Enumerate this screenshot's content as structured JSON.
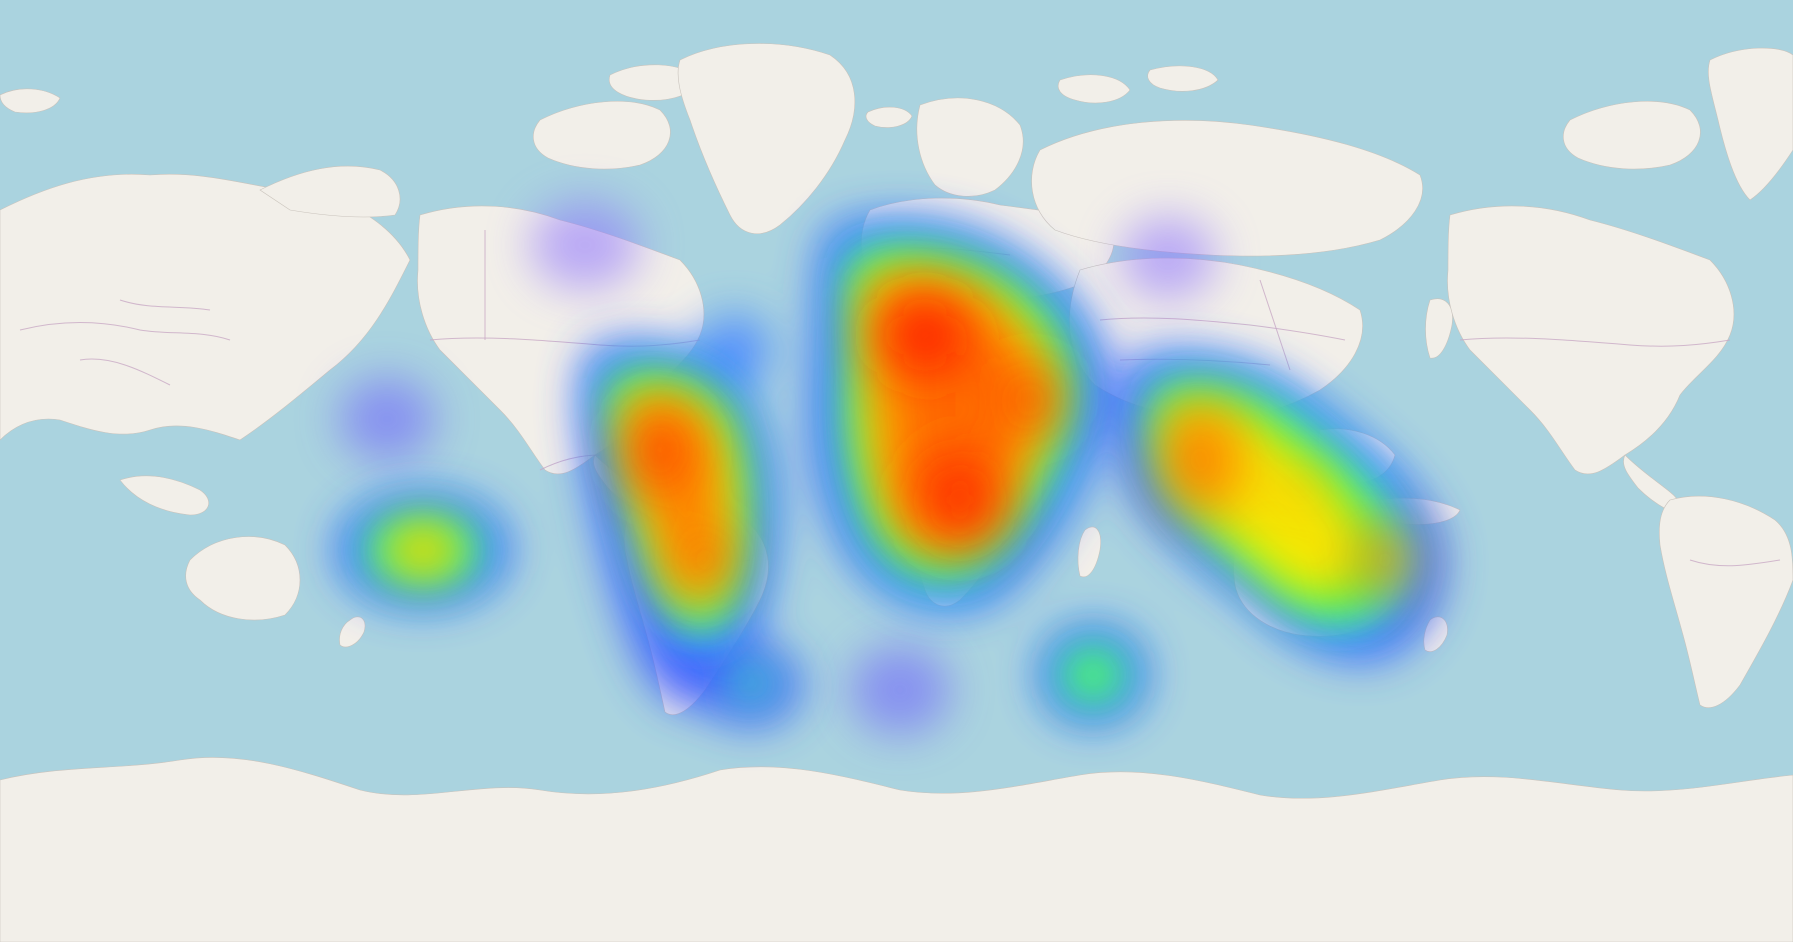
{
  "map": {
    "type": "heatmap-tile-map",
    "projection": "web-mercator",
    "world_copies_visible": 2,
    "colors": {
      "water": "#aad3df",
      "land": "#f2efe9",
      "land_outline": "#c9c3bc",
      "borders": "#c8a9c4"
    },
    "heat_gradient": [
      "#4a3fff",
      "#3fd4ff",
      "#3cff3c",
      "#ffe600",
      "#ff8a00",
      "#ff1a00"
    ],
    "heat_layer": {
      "description_of_intensity": "normalized 0-1",
      "clusters": [
        {
          "id": "north-pacific-west",
          "intensity": 0.25
        },
        {
          "id": "polynesia",
          "intensity": 0.7
        },
        {
          "id": "western-hemisphere",
          "intensity": 0.9
        },
        {
          "id": "europe-africa",
          "intensity": 1.0
        },
        {
          "id": "asia-australia",
          "intensity": 0.85
        },
        {
          "id": "indian-ocean",
          "intensity": 0.5
        },
        {
          "id": "south-atlantic",
          "intensity": 0.2
        },
        {
          "id": "russia",
          "intensity": 0.2
        },
        {
          "id": "canada",
          "intensity": 0.2
        }
      ]
    }
  }
}
